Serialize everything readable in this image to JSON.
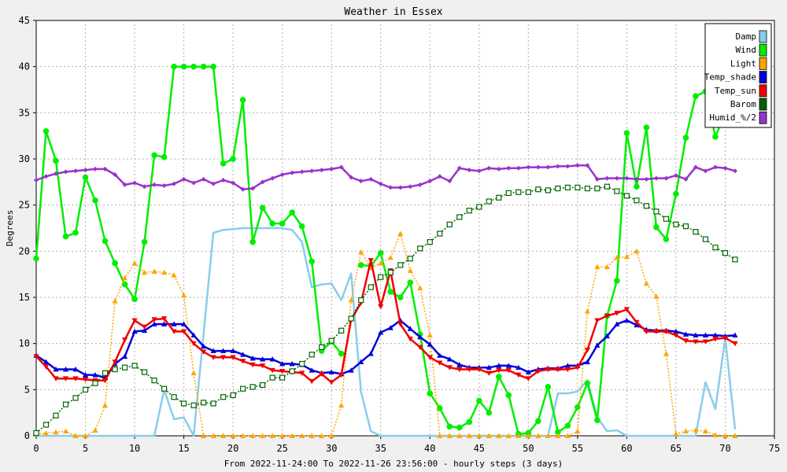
{
  "chart_data": {
    "type": "line",
    "title": "Weather in Essex",
    "xlabel": "From 2022-11-24:00 To 2022-11-26 23:56:00 - hourly steps (3 days)",
    "ylabel": "Degrees",
    "xlim": [
      0,
      75
    ],
    "ylim": [
      0,
      45
    ],
    "xticks": [
      0,
      5,
      10,
      15,
      20,
      25,
      30,
      35,
      40,
      45,
      50,
      55,
      60,
      65,
      70,
      75
    ],
    "yticks": [
      0,
      5,
      10,
      15,
      20,
      25,
      30,
      35,
      40,
      45
    ],
    "grid": true,
    "legend_position": "top-right",
    "x": [
      0,
      1,
      2,
      3,
      4,
      5,
      6,
      7,
      8,
      9,
      10,
      11,
      12,
      13,
      14,
      15,
      16,
      17,
      18,
      19,
      20,
      21,
      22,
      23,
      24,
      25,
      26,
      27,
      28,
      29,
      30,
      31,
      32,
      33,
      34,
      35,
      36,
      37,
      38,
      39,
      40,
      41,
      42,
      43,
      44,
      45,
      46,
      47,
      48,
      49,
      50,
      51,
      52,
      53,
      54,
      55,
      56,
      57,
      58,
      59,
      60,
      61,
      62,
      63,
      64,
      65,
      66,
      67,
      68,
      69,
      70,
      71
    ],
    "series": [
      {
        "name": "Damp",
        "color": "#87ceeb",
        "marker": "none",
        "dash": "solid",
        "values": [
          0,
          0,
          0,
          0,
          0,
          0,
          0,
          0,
          0,
          0,
          0,
          0,
          0,
          5,
          1.8,
          2,
          0,
          11,
          22,
          22.3,
          22.4,
          22.5,
          22.5,
          22.5,
          22.5,
          22.5,
          22.3,
          21,
          16.1,
          16.4,
          16.5,
          14.7,
          17.6,
          4.8,
          0.5,
          0,
          0,
          0,
          0,
          0,
          0,
          0,
          0,
          0,
          0,
          0,
          0,
          0,
          0,
          0,
          0,
          0,
          0,
          4.6,
          4.6,
          4.8,
          6,
          2,
          0.5,
          0.6,
          0,
          0,
          0,
          0,
          0,
          0,
          0,
          0,
          5.8,
          2.9,
          10.6,
          0.7
        ]
      },
      {
        "name": "Wind",
        "color": "#00ee00",
        "marker": "circle",
        "dash": "solid",
        "values": [
          19.2,
          33,
          29.8,
          21.6,
          22,
          28,
          25.5,
          21.1,
          18.7,
          16.4,
          14.8,
          21,
          30.4,
          30.2,
          40,
          40,
          40,
          40,
          40,
          29.5,
          30,
          36.4,
          21,
          24.7,
          23,
          23,
          24.2,
          22.7,
          18.9,
          9.2,
          10.2,
          8.9,
          null,
          18.5,
          18.4,
          19.8,
          15.6,
          15,
          16.6,
          11,
          4.6,
          3,
          1,
          0.9,
          1.5,
          3.8,
          2.5,
          6.4,
          4.4,
          0.2,
          0.3,
          1.6,
          5.3,
          0.4,
          1.1,
          3.1,
          5.7,
          1.7,
          13,
          16.8,
          32.8,
          27,
          33.4,
          22.6,
          21.3,
          26.2,
          32.3,
          36.8,
          37.3,
          32.4,
          35,
          null
        ]
      },
      {
        "name": "Light",
        "color": "#ffa500",
        "marker": "triangle-up",
        "dash": "dotted",
        "values": [
          0.2,
          0.3,
          0.4,
          0.5,
          0,
          0,
          0.6,
          3.3,
          14.6,
          17.1,
          18.7,
          17.7,
          17.8,
          17.7,
          17.4,
          15.2,
          6.8,
          0,
          0,
          0,
          0,
          0,
          0,
          0,
          0,
          0,
          0,
          0,
          0,
          0,
          0,
          3.3,
          14.7,
          19.9,
          18.2,
          18.7,
          19.3,
          21.9,
          17.9,
          16,
          10.9,
          0,
          0,
          0,
          0,
          0,
          0,
          0,
          0,
          0,
          0,
          0,
          0,
          0,
          0,
          0.5,
          13.5,
          18.3,
          18.3,
          19.3,
          19.4,
          20,
          16.5,
          15.1,
          8.9,
          0.2,
          0.5,
          0.6,
          0.5,
          0.1,
          0,
          0
        ]
      },
      {
        "name": "Temp_shade",
        "color": "#0000dd",
        "marker": "triangle-up",
        "dash": "solid",
        "values": [
          8.7,
          8,
          7.2,
          7.2,
          7.2,
          6.6,
          6.6,
          6.3,
          7.8,
          8.6,
          11.3,
          11.4,
          12.1,
          12.1,
          12.1,
          12.1,
          10.9,
          9.7,
          9.2,
          9.2,
          9.2,
          8.8,
          8.4,
          8.3,
          8.3,
          7.8,
          7.8,
          7.7,
          7.1,
          6.8,
          6.9,
          6.7,
          7.1,
          8,
          8.9,
          11.2,
          11.7,
          12.5,
          11.6,
          10.7,
          9.9,
          8.7,
          8.3,
          7.7,
          7.4,
          7.4,
          7.4,
          7.6,
          7.6,
          7.4,
          6.9,
          7.2,
          7.3,
          7.3,
          7.6,
          7.6,
          8,
          9.8,
          10.8,
          12.1,
          12.5,
          12,
          11.5,
          11.4,
          11.4,
          11.3,
          11,
          10.9,
          10.9,
          10.9,
          10.8,
          10.9
        ]
      },
      {
        "name": "Temp_sun",
        "color": "#ee0000",
        "marker": "triangle-down",
        "dash": "solid",
        "values": [
          8.6,
          7.5,
          6.2,
          6.2,
          6.2,
          6.1,
          6,
          6,
          8,
          10.4,
          12.5,
          11.8,
          12.6,
          12.7,
          11.3,
          11.3,
          10,
          9.1,
          8.5,
          8.5,
          8.5,
          8.1,
          7.7,
          7.6,
          7.1,
          7,
          6.9,
          6.8,
          5.9,
          6.7,
          5.8,
          6.6,
          12.6,
          14.4,
          19,
          14,
          17.9,
          12.1,
          10.5,
          9.6,
          8.5,
          7.9,
          7.4,
          7.2,
          7.2,
          7.2,
          6.8,
          7.1,
          7.1,
          6.6,
          6.2,
          7,
          7.2,
          7.2,
          7.2,
          7.4,
          9.3,
          12.5,
          13,
          13.3,
          13.7,
          12.3,
          11.3,
          11.3,
          11.3,
          10.9,
          10.3,
          10.2,
          10.2,
          10.5,
          10.6,
          10
        ]
      },
      {
        "name": "Barom",
        "color": "#006400",
        "marker": "square",
        "dash": "dotted",
        "values": [
          0.3,
          1.2,
          2.2,
          3.4,
          4.1,
          5,
          5.7,
          6.8,
          7.2,
          7.4,
          7.6,
          6.9,
          6,
          5.1,
          4.2,
          3.5,
          3.3,
          3.6,
          3.5,
          4.2,
          4.4,
          5.1,
          5.3,
          5.5,
          6.3,
          6.3,
          7,
          7.8,
          8.8,
          9.6,
          10.3,
          11.4,
          12.7,
          14.7,
          16.1,
          17.2,
          17.7,
          18.5,
          19.2,
          20.3,
          21,
          21.9,
          22.9,
          23.7,
          24.4,
          24.8,
          25.4,
          25.8,
          26.3,
          26.4,
          26.4,
          26.7,
          26.6,
          26.8,
          26.9,
          26.9,
          26.8,
          26.8,
          27,
          26.5,
          26,
          25.5,
          24.9,
          24.3,
          23.5,
          22.9,
          22.7,
          22.1,
          21.3,
          20.4,
          19.8,
          19.1
        ]
      },
      {
        "name": "Humid_%/2",
        "color": "#9932cc",
        "marker": "diamond",
        "dash": "solid",
        "values": [
          27.7,
          28.1,
          28.4,
          28.6,
          28.7,
          28.8,
          28.9,
          28.9,
          28.3,
          27.2,
          27.4,
          27,
          27.2,
          27.1,
          27.3,
          27.8,
          27.4,
          27.8,
          27.3,
          27.7,
          27.4,
          26.7,
          26.8,
          27.5,
          27.9,
          28.3,
          28.5,
          28.6,
          28.7,
          28.8,
          28.9,
          29.1,
          28,
          27.6,
          27.8,
          27.3,
          26.9,
          26.9,
          27,
          27.2,
          27.6,
          28.1,
          27.6,
          29,
          28.8,
          28.7,
          29,
          28.9,
          29,
          29,
          29.1,
          29.1,
          29.1,
          29.2,
          29.2,
          29.3,
          29.3,
          27.8,
          27.9,
          27.9,
          27.9,
          27.8,
          27.8,
          27.9,
          27.9,
          28.2,
          27.8,
          29.1,
          28.7,
          29.1,
          29,
          28.7
        ]
      }
    ]
  }
}
